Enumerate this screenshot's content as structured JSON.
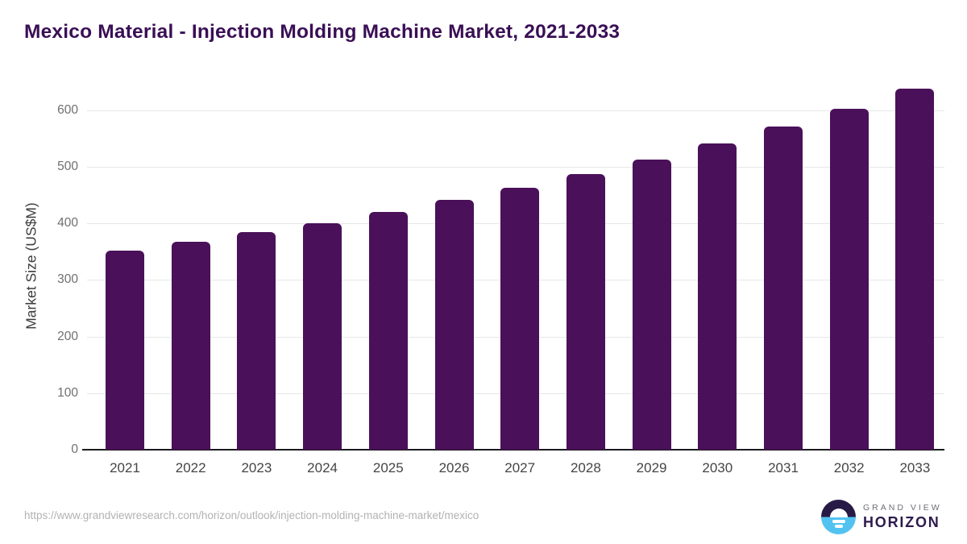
{
  "title": "Mexico Material - Injection Molding Machine Market, 2021-2033",
  "chart_data": {
    "type": "bar",
    "title": "Mexico Material - Injection Molding Machine Market, 2021-2033",
    "categories": [
      "2021",
      "2022",
      "2023",
      "2024",
      "2025",
      "2026",
      "2027",
      "2028",
      "2029",
      "2030",
      "2031",
      "2032",
      "2033"
    ],
    "values": [
      351,
      367,
      385,
      400,
      420,
      442,
      463,
      487,
      513,
      541,
      571,
      602,
      638
    ],
    "xlabel": "",
    "ylabel": "Market Size (US$M)",
    "ylim": [
      0,
      652
    ],
    "yticks": [
      0,
      100,
      200,
      300,
      400,
      500,
      600
    ],
    "grid": "horizontal-only",
    "legend_position": "none",
    "bar_color": "#4a1059"
  },
  "colors": {
    "title_text": "#3a0f55",
    "bar": "#4a1059",
    "gridline": "#e7e7e7",
    "axis_line": "#1b1b1f",
    "ytick_text": "#6f6f6f",
    "xtick_text": "#454545",
    "url_text": "#b2b2b2",
    "logo_dark": "#281a46",
    "logo_blue": "#52c3f1"
  },
  "footer": {
    "source_url": "https://www.grandviewresearch.com/horizon/outlook/injection-molding-machine-market/mexico",
    "logo": {
      "brand_top": "GRAND VIEW",
      "brand_bottom": "HORIZON"
    }
  }
}
